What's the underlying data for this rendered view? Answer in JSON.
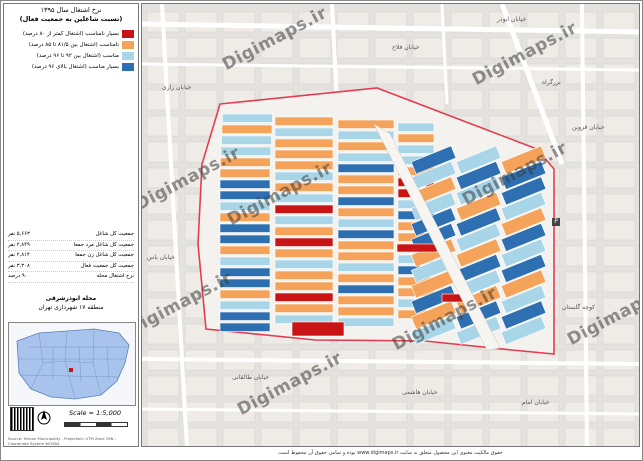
{
  "panel": {
    "title_line1": "نرخ اشتغال سال ۱۳۹۵",
    "title_line2": "(نسبت شاغلین به جمعیت فعال)",
    "legend": [
      {
        "label": "بسیار نامناسب (اشتغال کمتر از ۸۰ درصد)",
        "color": "#c81414"
      },
      {
        "label": "نامناسب (اشتغال بین ۸۱/۵ تا ۸۵ درصد)",
        "color": "#f5a35a"
      },
      {
        "label": "مناسب (اشتغال بین ۹۲ تا ۹۶ درصد)",
        "color": "#a9d5e8"
      },
      {
        "label": "بسیار مناسب (اشتغال بالای ۹۶ درصد)",
        "color": "#2d6fb0"
      }
    ],
    "stats": [
      {
        "label": "جمعیت کل شاغل",
        "value": "۵,۶۶۳ نفر"
      },
      {
        "label": "جمعیت کل شاغل مرد جمعا",
        "value": "۲,۸۴۹ نفر"
      },
      {
        "label": "جمعیت کل شاغل زن جمعا",
        "value": "۲,۸۱۴ نفر"
      },
      {
        "label": "جمعیت کل جمعیت فعال",
        "value": "۳,۳۰۸ نفر"
      },
      {
        "label": "نرخ اشتغال محله",
        "value": "۹۰ درصد"
      }
    ],
    "region_line1": "محله ابوذرشرقی",
    "region_line2": "منطقه ۱۷ شهرداری تهران",
    "scale": "Scale = 1:5,000",
    "credit": "Source: Tehran Municipality - Projection: UTM Zone 39N - Coordinate System WGS84"
  },
  "map": {
    "watermark": "Digimaps.ir",
    "streets": [
      "خیابان ابوذر",
      "خیابان فلاح",
      "بزرگراه",
      "خیابان قزوین",
      "خیابان رازی",
      "خیابان هاشمی",
      "خیابان طالقانی",
      "کوچه گلستان",
      "خیابان امام",
      "خیابان یاس"
    ]
  },
  "footer": "حقوق مالکیت معنوی این محصول متعلق به سایت www.digimaps.ir بوده و تمامی حقوق آن محفوظ است."
}
